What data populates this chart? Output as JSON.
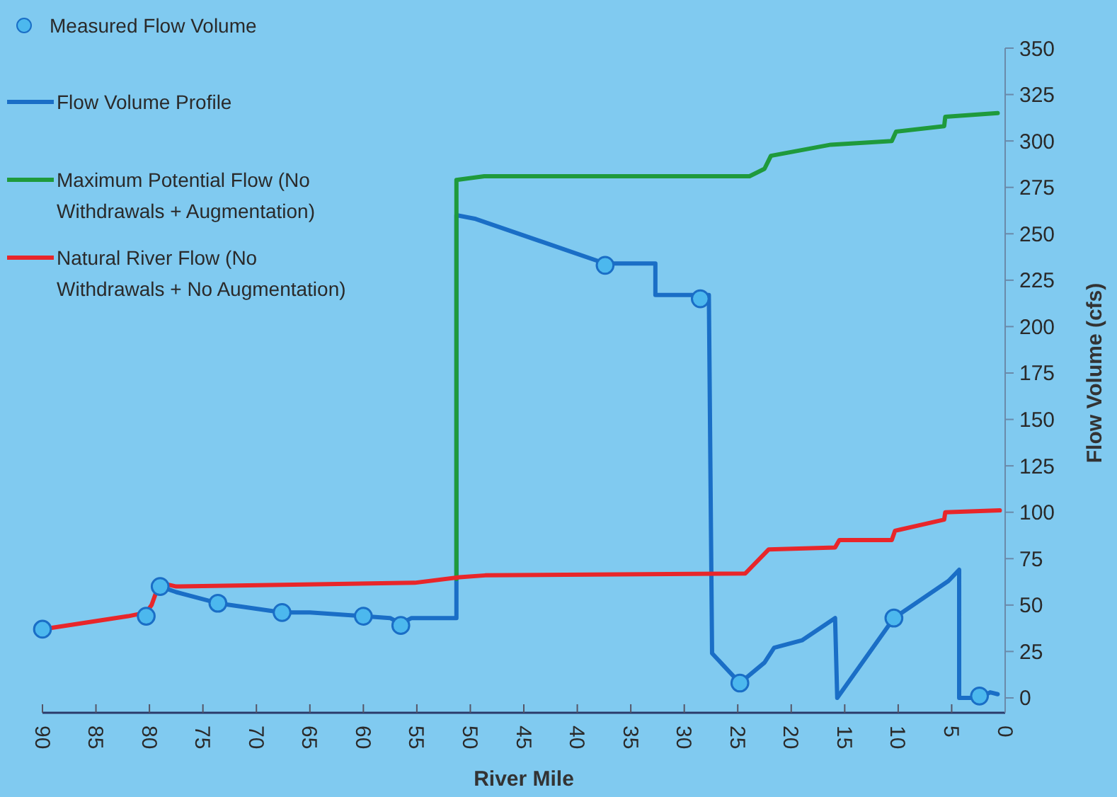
{
  "chart_data": {
    "type": "line",
    "xlabel": "River Mile",
    "ylabel": "Flow Volume (cfs)",
    "xlim": [
      90,
      0
    ],
    "ylim": [
      -8,
      350
    ],
    "xticks": [
      90,
      85,
      80,
      75,
      70,
      65,
      60,
      55,
      50,
      45,
      40,
      35,
      30,
      25,
      20,
      15,
      10,
      5,
      0
    ],
    "yticks": [
      0,
      25,
      50,
      75,
      100,
      125,
      150,
      175,
      200,
      225,
      250,
      275,
      300,
      325,
      350
    ],
    "grid": false,
    "legend": "top left",
    "series": [
      {
        "name": "Measured Flow Volume",
        "type": "scatter",
        "marker": "circle",
        "color": "#4cb8ee",
        "x": [
          90,
          80.3,
          79,
          73.6,
          67.6,
          60,
          56.5,
          37.4,
          28.5,
          24.8,
          10.4,
          2.4
        ],
        "values": [
          37,
          44,
          60,
          51,
          46,
          44,
          39,
          233,
          215,
          8,
          43,
          1
        ]
      },
      {
        "name": "Flow Volume Profile",
        "marker": "none",
        "color": "#1a6ec6",
        "x": [
          79,
          77.5,
          73.6,
          67.6,
          65,
          60,
          57.5,
          56.5,
          55.5,
          51.3,
          51.3,
          49.5,
          37.4,
          32.7,
          32.7,
          27.7,
          27.4,
          24.8,
          22.5,
          21.6,
          19,
          15.9,
          15.7,
          10.4,
          5.3,
          4.3,
          4.3,
          2.4,
          1.4,
          0.7
        ],
        "values": [
          60,
          57,
          51,
          46,
          46,
          44,
          43,
          40,
          43,
          43,
          260,
          258,
          234,
          234,
          217,
          217,
          24,
          8,
          19,
          27,
          31,
          43,
          0,
          43,
          63,
          69,
          0,
          0,
          3,
          2
        ]
      },
      {
        "name": "Maximum Potential Flow (No Withdrawals + Augmentation)",
        "marker": "none",
        "color": "#1f9a3c",
        "x": [
          51.3,
          51.3,
          48.7,
          23.9,
          22.5,
          21.9,
          16.3,
          10.6,
          10.2,
          5.7,
          5.6,
          0.7
        ],
        "values": [
          64,
          279,
          281,
          281,
          285,
          292,
          298,
          300,
          305,
          308,
          313,
          315
        ]
      },
      {
        "name": "Natural River Flow (No Withdrawals + No Augmentation)",
        "marker": "none",
        "color": "#e8262a",
        "x": [
          90,
          82,
          80.3,
          79.8,
          79.3,
          79,
          77.5,
          55.2,
          51,
          48.6,
          24.3,
          22.1,
          15.9,
          15.5,
          10.6,
          10.3,
          5.7,
          5.6,
          0.5
        ],
        "values": [
          37,
          44,
          46,
          50,
          58,
          62,
          60,
          62,
          65,
          66,
          67,
          80,
          81,
          85,
          85,
          90,
          96,
          100,
          101
        ]
      }
    ]
  }
}
